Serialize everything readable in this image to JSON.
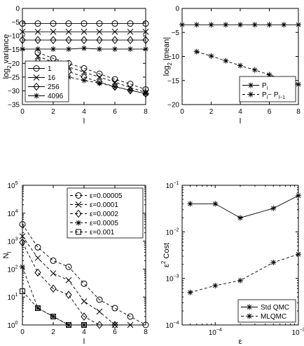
{
  "chart_data": [
    {
      "type": "line",
      "panel": "top-left",
      "xlabel": "l",
      "ylabel": "log",
      "ylabel_sub": "2",
      "ylabel_rest": " variance",
      "xlim": [
        0,
        8
      ],
      "ylim": [
        -35,
        0
      ],
      "xticks": [
        0,
        2,
        4,
        6,
        8
      ],
      "yticks": [
        -35,
        -30,
        -25,
        -20,
        -15,
        -10,
        -5,
        0
      ],
      "legend_position": "bottom-left",
      "series": [
        {
          "name": "1",
          "marker": "circle",
          "x": [
            0,
            1,
            2,
            3,
            4,
            5,
            6,
            7,
            8
          ],
          "y": [
            -5.5,
            -5.5,
            -5.5,
            -5.5,
            -5.5,
            -5.5,
            -5.5,
            -5.5,
            -5.5
          ]
        },
        {
          "name": "16",
          "marker": "x",
          "x": [
            0,
            1,
            2,
            3,
            4,
            5,
            6,
            7,
            8
          ],
          "y": [
            -8.5,
            -8.5,
            -8.5,
            -8.5,
            -8.5,
            -8.5,
            -8.5,
            -8.5,
            -8.5
          ]
        },
        {
          "name": "256",
          "marker": "diamond",
          "x": [
            0,
            1,
            2,
            3,
            4,
            5,
            6,
            7,
            8
          ],
          "y": [
            -11.5,
            -11.5,
            -11.5,
            -11.5,
            -11.5,
            -11.5,
            -11.5,
            -11.5,
            -11.5
          ]
        },
        {
          "name": "4096",
          "marker": "star",
          "x": [
            0,
            1,
            2,
            3,
            4,
            5,
            6,
            7,
            8
          ],
          "y": [
            -14.8,
            -14.8,
            -14.8,
            -14.8,
            -14.5,
            -14.8,
            -14.8,
            -14.8,
            -14.8
          ]
        }
      ],
      "dashed_series": [
        {
          "marker": "circle",
          "x": [
            1,
            2,
            3,
            4,
            5,
            6,
            7,
            8
          ],
          "y": [
            -16,
            -18.2,
            -20,
            -21.8,
            -23.8,
            -25.8,
            -27.5,
            -29.5
          ]
        },
        {
          "marker": "x",
          "x": [
            1,
            2,
            3,
            4,
            5,
            6,
            7,
            8
          ],
          "y": [
            -17.5,
            -19.5,
            -21.3,
            -23.2,
            -25,
            -26.8,
            -28.8,
            -30.6
          ]
        },
        {
          "marker": "diamond",
          "x": [
            1,
            2,
            3,
            4,
            5,
            6,
            7,
            8
          ],
          "y": [
            -19.3,
            -21.3,
            -23,
            -25,
            -26.8,
            -28.5,
            -29.8,
            -31
          ]
        },
        {
          "marker": "star",
          "x": [
            1,
            2,
            3,
            4,
            5,
            6,
            7,
            8
          ],
          "y": [
            -22.2,
            -23.8,
            -25,
            -26.2,
            -27.2,
            -28.5,
            -29.8,
            -31
          ]
        }
      ]
    },
    {
      "type": "line",
      "panel": "top-right",
      "xlabel": "l",
      "ylabel": "log",
      "ylabel_sub": "2",
      "ylabel_rest": " |mean|",
      "xlim": [
        0,
        8
      ],
      "ylim": [
        -20,
        0
      ],
      "xticks": [
        0,
        2,
        4,
        6,
        8
      ],
      "yticks": [
        -20,
        -15,
        -10,
        -5,
        0
      ],
      "legend_position": "bottom-right",
      "series": [
        {
          "name": "P",
          "name_sub": "l",
          "style": "solid",
          "marker": "star",
          "x": [
            0,
            1,
            2,
            3,
            4,
            5,
            6,
            7,
            8
          ],
          "y": [
            -3.4,
            -3.4,
            -3.4,
            -3.4,
            -3.4,
            -3.4,
            -3.4,
            -3.4,
            -3.4
          ]
        },
        {
          "name": "P",
          "name_sub": "l",
          "name_mid": "− P",
          "name_sub2": "l−1",
          "style": "dashed",
          "marker": "star",
          "x": [
            1,
            2,
            3,
            4,
            5,
            6,
            7,
            8
          ],
          "y": [
            -9,
            -9.9,
            -10.9,
            -11.9,
            -12.8,
            -13.8,
            -14.8,
            -15.8
          ]
        }
      ]
    },
    {
      "type": "line",
      "panel": "bottom-left",
      "xlabel": "l",
      "ylabel": "N",
      "ylabel_sub": "l",
      "yscale": "log",
      "xlim": [
        0,
        8
      ],
      "ylim": [
        1,
        100000
      ],
      "xticks": [
        0,
        2,
        4,
        6,
        8
      ],
      "yticks": [
        1,
        10,
        100,
        1000,
        10000,
        100000
      ],
      "ytick_base": "10",
      "ytick_exps": [
        "0",
        "1",
        "2",
        "3",
        "4",
        "5"
      ],
      "legend_position": "top-right",
      "series": [
        {
          "name": "ε=0.00005",
          "marker": "circle",
          "x": [
            0,
            1,
            2,
            3,
            4,
            5,
            6,
            7,
            8
          ],
          "y": [
            4000,
            600,
            200,
            120,
            30,
            8,
            4,
            2,
            1
          ]
        },
        {
          "name": "ε=0.0001",
          "marker": "x",
          "x": [
            0,
            1,
            2,
            3,
            4,
            5,
            6,
            7
          ],
          "y": [
            1500,
            250,
            70,
            40,
            7,
            3,
            1,
            1
          ]
        },
        {
          "name": "ε=0.0002",
          "marker": "diamond",
          "x": [
            0,
            1,
            2,
            3,
            4,
            5,
            6
          ],
          "y": [
            900,
            75,
            20,
            12,
            2,
            1,
            1
          ]
        },
        {
          "name": "ε=0.0005",
          "marker": "star",
          "x": [
            0,
            1,
            2,
            3,
            4
          ],
          "y": [
            120,
            4,
            2,
            1,
            1
          ]
        },
        {
          "name": "ε=0.001",
          "marker": "square",
          "x": [
            0,
            1,
            2,
            3,
            4
          ],
          "y": [
            16,
            4,
            2,
            1,
            1
          ]
        }
      ]
    },
    {
      "type": "line",
      "panel": "bottom-right",
      "xlabel": "ε",
      "ylabel": "ε",
      "ylabel_sup": "2",
      "ylabel_rest": " Cost",
      "xscale": "log",
      "yscale": "log",
      "xlim": [
        4e-05,
        0.001
      ],
      "ylim": [
        0.0001,
        0.1
      ],
      "xticks": [
        0.0001,
        0.001
      ],
      "xtick_exps": [
        "−4",
        "−3"
      ],
      "yticks": [
        0.0001,
        0.001,
        0.01,
        0.1
      ],
      "ytick_exps": [
        "−4",
        "−3",
        "−2",
        "−1"
      ],
      "tick_base": "10",
      "legend_position": "bottom-right",
      "series": [
        {
          "name": "Std QMC",
          "style": "solid",
          "marker": "star",
          "x": [
            5e-05,
            0.0001,
            0.0002,
            0.0005,
            0.001
          ],
          "y": [
            0.04,
            0.04,
            0.02,
            0.032,
            0.06
          ]
        },
        {
          "name": "MLQMC",
          "style": "dashed",
          "marker": "star",
          "x": [
            5e-05,
            0.0001,
            0.0002,
            0.0005,
            0.001
          ],
          "y": [
            0.0005,
            0.0007,
            0.0009,
            0.0022,
            0.0033
          ]
        }
      ]
    }
  ]
}
